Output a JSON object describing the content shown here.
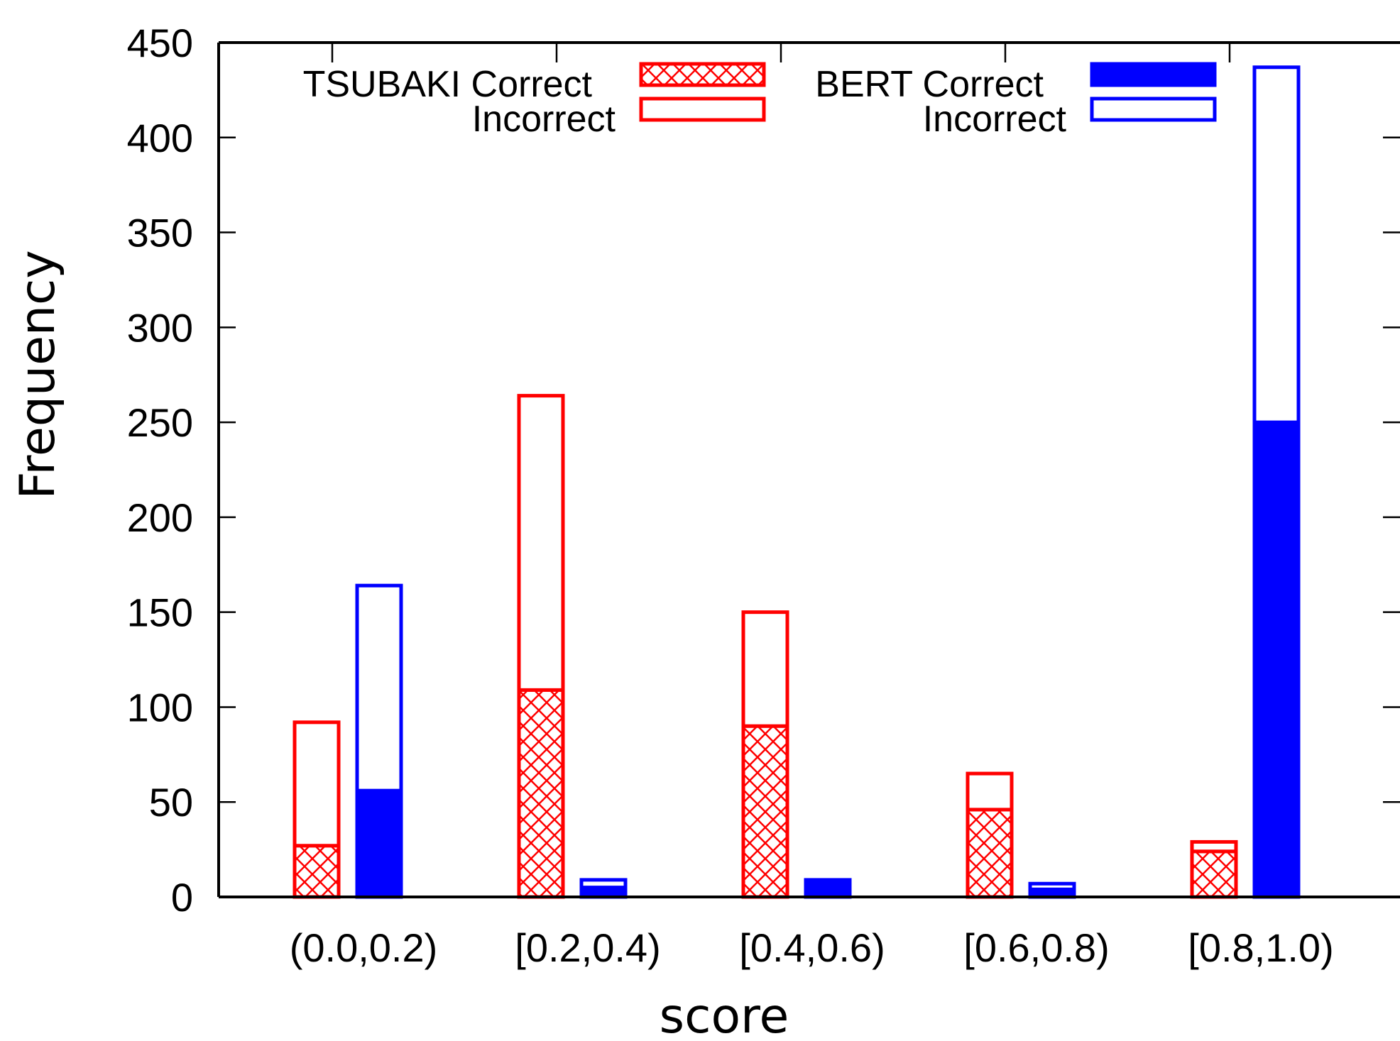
{
  "chart_data": {
    "type": "bar",
    "subtype": "stacked-grouped",
    "xlabel": "score",
    "ylabel": "Frequency",
    "ylim": [
      0,
      450
    ],
    "yticks": [
      0,
      50,
      100,
      150,
      200,
      250,
      300,
      350,
      400,
      450
    ],
    "categories": [
      "(0.0,0.2)",
      "[0.2,0.4)",
      "[0.4,0.6)",
      "[0.6,0.8)",
      "[0.8,1.0)"
    ],
    "groups": [
      {
        "name": "TSUBAKI",
        "color": "#ff0000",
        "series": [
          {
            "name": "Correct",
            "fill": "crosshatch",
            "values": [
              27,
              109,
              90,
              46,
              24
            ]
          },
          {
            "name": "Incorrect",
            "fill": "empty",
            "values": [
              65,
              155,
              60,
              19,
              5
            ]
          }
        ]
      },
      {
        "name": "BERT",
        "color": "#0000ff",
        "series": [
          {
            "name": "Correct",
            "fill": "solid",
            "values": [
              56,
              5,
              8,
              4,
              250
            ]
          },
          {
            "name": "Incorrect",
            "fill": "empty",
            "values": [
              108,
              4,
              1,
              3,
              187
            ]
          }
        ]
      }
    ],
    "legend": {
      "placement": "top",
      "entries": [
        {
          "group_label": "TSUBAKI",
          "label": "Correct"
        },
        {
          "group_label": "",
          "label": "Incorrect"
        },
        {
          "group_label": "BERT",
          "label": "Correct"
        },
        {
          "group_label": "",
          "label": "Incorrect"
        }
      ]
    },
    "grid": false
  }
}
